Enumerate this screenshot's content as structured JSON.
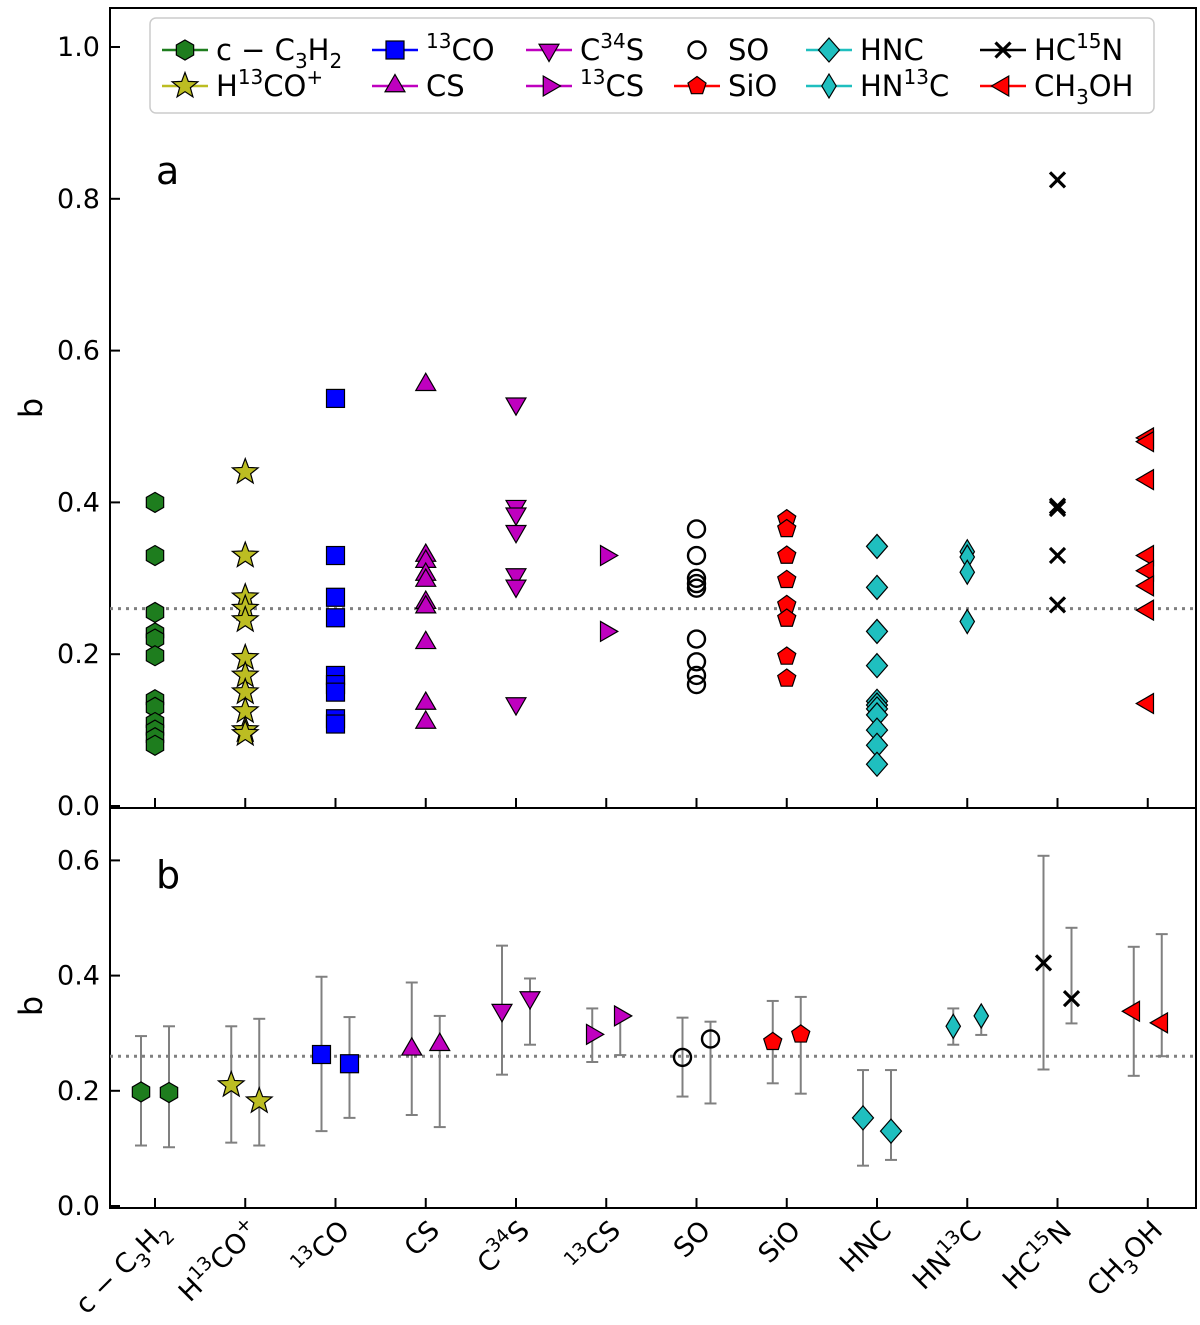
{
  "chart_data": [
    {
      "type": "scatter",
      "panel_label": "a",
      "ylabel": "b",
      "xlabel": "",
      "ylim": [
        0.0,
        1.05
      ],
      "yticks": [
        "0.0",
        "0.2",
        "0.4",
        "0.6",
        "0.8",
        "1.0"
      ],
      "reference_line": 0.26,
      "grid": false,
      "legend": {
        "position": "top",
        "entries": [
          {
            "label": "c − C3H2",
            "marker": "hexagon",
            "color": "#1e7d1e"
          },
          {
            "label": "H13CO+",
            "marker": "star",
            "color": "#bcbd22"
          },
          {
            "label": "13CO",
            "marker": "square",
            "color": "#0000ff"
          },
          {
            "label": "CS",
            "marker": "triangle-up",
            "color": "#bf00bf"
          },
          {
            "label": "C34S",
            "marker": "triangle-down",
            "color": "#bf00bf"
          },
          {
            "label": "13CS",
            "marker": "triangle-right",
            "color": "#bf00bf"
          },
          {
            "label": "SO",
            "marker": "circle-open",
            "color": "#000000"
          },
          {
            "label": "SiO",
            "marker": "pentagon",
            "color": "#ff0000"
          },
          {
            "label": "HNC",
            "marker": "diamond",
            "color": "#1fbfbf"
          },
          {
            "label": "HN13C",
            "marker": "thin-diamond",
            "color": "#1fbfbf"
          },
          {
            "label": "HC15N",
            "marker": "x",
            "color": "#000000"
          },
          {
            "label": "CH3OH",
            "marker": "triangle-left",
            "color": "#ff0000"
          }
        ]
      },
      "categories": [
        "c − C3H2",
        "H13CO+",
        "13CO",
        "CS",
        "C34S",
        "13CS",
        "SO",
        "SiO",
        "HNC",
        "HN13C",
        "HC15N",
        "CH3OH"
      ],
      "series": [
        {
          "name": "c − C3H2",
          "values": [
            0.4,
            0.33,
            0.255,
            0.228,
            0.22,
            0.198,
            0.14,
            0.13,
            0.11,
            0.1,
            0.09,
            0.08
          ]
        },
        {
          "name": "H13CO+",
          "values": [
            0.44,
            0.33,
            0.275,
            0.26,
            0.245,
            0.195,
            0.172,
            0.15,
            0.125,
            0.1,
            0.095
          ]
        },
        {
          "name": "13CO",
          "values": [
            0.537,
            0.33,
            0.275,
            0.248,
            0.172,
            0.16,
            0.15,
            0.115,
            0.108
          ]
        },
        {
          "name": "CS",
          "values": [
            0.555,
            0.33,
            0.322,
            0.305,
            0.297,
            0.268,
            0.262,
            0.215,
            0.135,
            0.11
          ]
        },
        {
          "name": "C34S",
          "values": [
            0.53,
            0.395,
            0.385,
            0.362,
            0.305,
            0.29,
            0.135
          ]
        },
        {
          "name": "13CS",
          "values": [
            0.33,
            0.23
          ]
        },
        {
          "name": "SO",
          "values": [
            0.365,
            0.33,
            0.3,
            0.293,
            0.287,
            0.22,
            0.19,
            0.172,
            0.16
          ]
        },
        {
          "name": "SiO",
          "values": [
            0.378,
            0.365,
            0.33,
            0.298,
            0.265,
            0.247,
            0.197,
            0.168
          ]
        },
        {
          "name": "HNC",
          "values": [
            0.342,
            0.288,
            0.23,
            0.185,
            0.138,
            0.133,
            0.128,
            0.12,
            0.1,
            0.08,
            0.055
          ]
        },
        {
          "name": "HN13C",
          "values": [
            0.335,
            0.328,
            0.308,
            0.243
          ]
        },
        {
          "name": "HC15N",
          "values": [
            0.825,
            0.395,
            0.392,
            0.33,
            0.265
          ]
        },
        {
          "name": "CH3OH",
          "values": [
            0.485,
            0.48,
            0.43,
            0.33,
            0.31,
            0.29,
            0.258,
            0.135
          ]
        }
      ]
    },
    {
      "type": "scatter",
      "panel_label": "b",
      "ylabel": "b",
      "xlabel": "",
      "ylim": [
        0.0,
        0.68
      ],
      "yticks": [
        "0.0",
        "0.2",
        "0.4",
        "0.6"
      ],
      "reference_line": 0.26,
      "grid": false,
      "categories": [
        "c − C3H2",
        "H13CO+",
        "13CO",
        "CS",
        "C34S",
        "13CS",
        "SO",
        "SiO",
        "HNC",
        "HN13C",
        "HC15N",
        "CH3OH"
      ],
      "series": [
        {
          "name": "c − C3H2",
          "points": [
            {
              "value": 0.198,
              "low": 0.105,
              "high": 0.295
            },
            {
              "value": 0.197,
              "low": 0.102,
              "high": 0.312
            }
          ]
        },
        {
          "name": "H13CO+",
          "points": [
            {
              "value": 0.21,
              "low": 0.11,
              "high": 0.312
            },
            {
              "value": 0.182,
              "low": 0.105,
              "high": 0.325
            }
          ]
        },
        {
          "name": "13CO",
          "points": [
            {
              "value": 0.263,
              "low": 0.13,
              "high": 0.398
            },
            {
              "value": 0.247,
              "low": 0.153,
              "high": 0.328
            }
          ]
        },
        {
          "name": "CS",
          "points": [
            {
              "value": 0.272,
              "low": 0.158,
              "high": 0.388
            },
            {
              "value": 0.28,
              "low": 0.137,
              "high": 0.33
            }
          ]
        },
        {
          "name": "C34S",
          "points": [
            {
              "value": 0.34,
              "low": 0.228,
              "high": 0.452
            },
            {
              "value": 0.362,
              "low": 0.28,
              "high": 0.395
            }
          ]
        },
        {
          "name": "13CS",
          "points": [
            {
              "value": 0.298,
              "low": 0.25,
              "high": 0.343
            },
            {
              "value": 0.33,
              "low": 0.262,
              "high": 0.33
            }
          ]
        },
        {
          "name": "SO",
          "points": [
            {
              "value": 0.258,
              "low": 0.19,
              "high": 0.327
            },
            {
              "value": 0.29,
              "low": 0.178,
              "high": 0.32
            }
          ]
        },
        {
          "name": "SiO",
          "points": [
            {
              "value": 0.285,
              "low": 0.213,
              "high": 0.356
            },
            {
              "value": 0.298,
              "low": 0.195,
              "high": 0.363
            }
          ]
        },
        {
          "name": "HNC",
          "points": [
            {
              "value": 0.153,
              "low": 0.07,
              "high": 0.236
            },
            {
              "value": 0.13,
              "low": 0.08,
              "high": 0.236
            }
          ]
        },
        {
          "name": "HN13C",
          "points": [
            {
              "value": 0.312,
              "low": 0.28,
              "high": 0.343
            },
            {
              "value": 0.33,
              "low": 0.297,
              "high": 0.33
            }
          ]
        },
        {
          "name": "HC15N",
          "points": [
            {
              "value": 0.422,
              "low": 0.237,
              "high": 0.608
            },
            {
              "value": 0.36,
              "low": 0.317,
              "high": 0.483
            }
          ]
        },
        {
          "name": "CH3OH",
          "points": [
            {
              "value": 0.338,
              "low": 0.226,
              "high": 0.45
            },
            {
              "value": 0.318,
              "low": 0.26,
              "high": 0.472
            }
          ]
        }
      ]
    }
  ]
}
